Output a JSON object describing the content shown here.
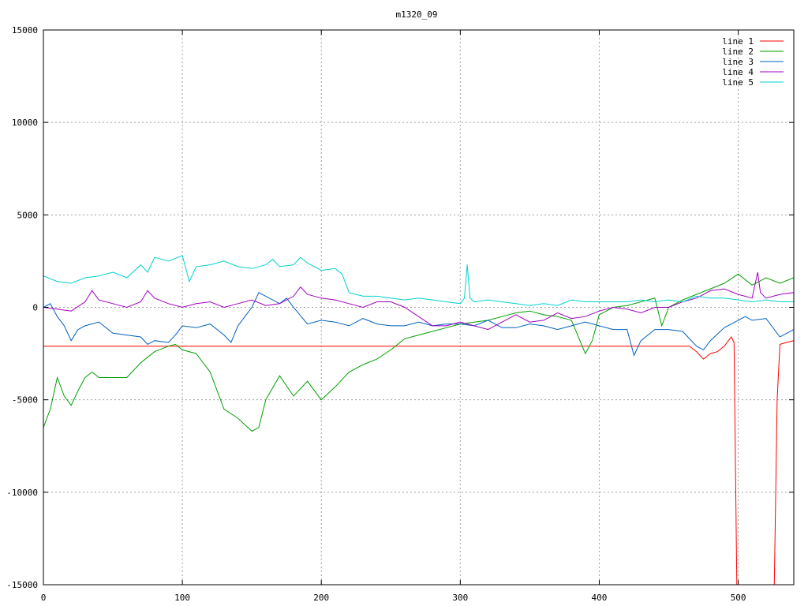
{
  "chart_data": {
    "type": "line",
    "title": "m1320_09",
    "xlim": [
      0,
      540
    ],
    "ylim": [
      -15000,
      15000
    ],
    "x_ticks": [
      0,
      100,
      200,
      300,
      400,
      500
    ],
    "y_ticks": [
      -15000,
      -10000,
      -5000,
      0,
      5000,
      10000,
      15000
    ],
    "grid": true,
    "legend_position": "top-right",
    "series": [
      {
        "name": "line 1",
        "color": "#ff0000",
        "x": [
          0,
          460,
          465,
          470,
          475,
          480,
          485,
          490,
          495,
          497,
          499,
          500,
          505,
          510,
          515,
          520,
          525,
          526,
          528,
          530,
          535,
          540
        ],
        "y": [
          -2100,
          -2100,
          -2100,
          -2400,
          -2800,
          -2500,
          -2400,
          -2100,
          -1600,
          -1900,
          -15000,
          -15000,
          -15000,
          -15000,
          -15000,
          -15000,
          -15000,
          -15000,
          -5000,
          -2000,
          -1900,
          -1800
        ]
      },
      {
        "name": "line 2",
        "color": "#00a000",
        "x": [
          0,
          5,
          10,
          15,
          20,
          25,
          30,
          35,
          40,
          50,
          60,
          70,
          80,
          90,
          95,
          100,
          110,
          120,
          130,
          140,
          150,
          155,
          160,
          170,
          180,
          190,
          200,
          210,
          220,
          230,
          240,
          250,
          260,
          270,
          280,
          290,
          300,
          310,
          320,
          330,
          340,
          350,
          360,
          370,
          380,
          390,
          395,
          400,
          410,
          420,
          430,
          440,
          445,
          450,
          460,
          470,
          480,
          490,
          500,
          510,
          520,
          530,
          540
        ],
        "y": [
          -6500,
          -5500,
          -3800,
          -4800,
          -5300,
          -4500,
          -3800,
          -3500,
          -3800,
          -3800,
          -3800,
          -3000,
          -2400,
          -2100,
          -2000,
          -2300,
          -2500,
          -3500,
          -5500,
          -6000,
          -6700,
          -6500,
          -5000,
          -3700,
          -4800,
          -4000,
          -5000,
          -4300,
          -3500,
          -3100,
          -2800,
          -2300,
          -1700,
          -1500,
          -1300,
          -1100,
          -900,
          -800,
          -700,
          -500,
          -300,
          -200,
          -400,
          -500,
          -700,
          -2500,
          -1800,
          -400,
          0,
          100,
          300,
          500,
          -1000,
          0,
          400,
          700,
          1000,
          1300,
          1800,
          1200,
          1600,
          1300,
          1600
        ]
      },
      {
        "name": "line 3",
        "color": "#0060c0",
        "x": [
          0,
          5,
          10,
          15,
          20,
          25,
          30,
          40,
          50,
          60,
          70,
          75,
          80,
          90,
          95,
          100,
          110,
          120,
          130,
          135,
          140,
          150,
          155,
          160,
          170,
          175,
          180,
          190,
          200,
          210,
          220,
          230,
          240,
          250,
          260,
          270,
          280,
          290,
          300,
          310,
          320,
          330,
          340,
          350,
          360,
          370,
          380,
          390,
          400,
          410,
          420,
          425,
          430,
          440,
          450,
          460,
          470,
          475,
          480,
          490,
          500,
          505,
          510,
          520,
          530,
          540
        ],
        "y": [
          0,
          200,
          -500,
          -1000,
          -1800,
          -1200,
          -1000,
          -800,
          -1400,
          -1500,
          -1600,
          -2000,
          -1800,
          -1900,
          -1500,
          -1000,
          -1100,
          -900,
          -1500,
          -1900,
          -1000,
          0,
          800,
          600,
          200,
          500,
          0,
          -900,
          -700,
          -800,
          -1000,
          -600,
          -900,
          -1000,
          -1000,
          -800,
          -1000,
          -900,
          -900,
          -1000,
          -700,
          -1100,
          -1100,
          -900,
          -1000,
          -1200,
          -1000,
          -800,
          -1000,
          -1200,
          -1200,
          -2600,
          -1800,
          -1200,
          -1200,
          -1300,
          -2100,
          -2300,
          -1800,
          -1100,
          -700,
          -500,
          -700,
          -600,
          -1600,
          -1200
        ]
      },
      {
        "name": "line 4",
        "color": "#a000c0",
        "x": [
          0,
          10,
          20,
          30,
          35,
          40,
          50,
          60,
          70,
          75,
          80,
          90,
          100,
          110,
          120,
          130,
          140,
          150,
          160,
          170,
          180,
          185,
          190,
          200,
          210,
          220,
          230,
          240,
          250,
          260,
          270,
          280,
          290,
          300,
          310,
          320,
          330,
          340,
          350,
          360,
          370,
          380,
          390,
          400,
          410,
          420,
          430,
          440,
          450,
          460,
          470,
          480,
          490,
          500,
          510,
          514,
          516,
          520,
          530,
          540
        ],
        "y": [
          0,
          -100,
          -200,
          300,
          900,
          400,
          200,
          0,
          300,
          900,
          500,
          200,
          0,
          200,
          300,
          0,
          200,
          400,
          100,
          200,
          600,
          1100,
          700,
          500,
          400,
          200,
          0,
          300,
          300,
          0,
          -500,
          -1000,
          -1000,
          -800,
          -1000,
          -1200,
          -800,
          -400,
          -800,
          -700,
          -300,
          -600,
          -500,
          -200,
          0,
          -100,
          -300,
          0,
          0,
          300,
          500,
          900,
          1000,
          700,
          500,
          1900,
          800,
          500,
          700,
          800
        ]
      },
      {
        "name": "line 5",
        "color": "#00d0d0",
        "x": [
          0,
          10,
          20,
          30,
          40,
          50,
          60,
          70,
          75,
          80,
          90,
          100,
          105,
          110,
          120,
          130,
          140,
          150,
          160,
          165,
          170,
          180,
          185,
          190,
          200,
          210,
          215,
          220,
          230,
          240,
          250,
          260,
          270,
          280,
          290,
          300,
          303,
          305,
          307,
          310,
          320,
          330,
          340,
          350,
          360,
          370,
          380,
          390,
          400,
          410,
          420,
          430,
          440,
          450,
          460,
          470,
          480,
          490,
          500,
          510,
          520,
          530,
          540
        ],
        "y": [
          1700,
          1400,
          1300,
          1600,
          1700,
          1900,
          1600,
          2300,
          1900,
          2700,
          2500,
          2800,
          1400,
          2200,
          2300,
          2500,
          2200,
          2100,
          2300,
          2600,
          2200,
          2300,
          2700,
          2400,
          2000,
          2100,
          1800,
          800,
          600,
          600,
          500,
          400,
          500,
          400,
          300,
          200,
          500,
          2300,
          500,
          300,
          400,
          300,
          200,
          100,
          200,
          100,
          400,
          300,
          300,
          300,
          300,
          400,
          300,
          400,
          300,
          600,
          500,
          500,
          400,
          300,
          400,
          300,
          300
        ]
      }
    ]
  }
}
